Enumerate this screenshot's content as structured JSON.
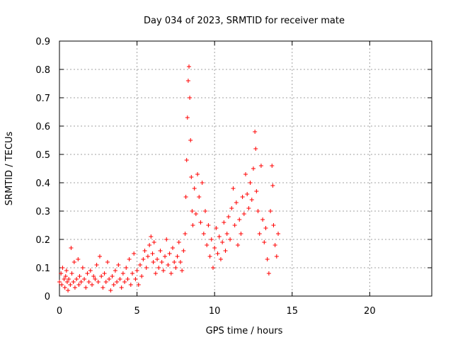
{
  "chart_data": {
    "type": "scatter",
    "title": "Day 034 of 2023, SRMTID for receiver mate",
    "xlabel": "GPS time / hours",
    "ylabel": "SRMTID / TECUs",
    "xlim": [
      0,
      24
    ],
    "ylim": [
      0,
      0.9
    ],
    "grid": true,
    "xticks": [
      0,
      5,
      10,
      15,
      20
    ],
    "yticks": [
      0,
      0.1,
      0.2,
      0.3,
      0.4,
      0.5,
      0.6,
      0.7,
      0.8,
      0.9
    ],
    "marker": "+",
    "series_color": "#ff0000",
    "series": [
      {
        "name": "SRMTID",
        "points": [
          [
            0.0,
            0.05
          ],
          [
            0.1,
            0.08
          ],
          [
            0.15,
            0.04
          ],
          [
            0.2,
            0.1
          ],
          [
            0.3,
            0.06
          ],
          [
            0.35,
            0.03
          ],
          [
            0.4,
            0.07
          ],
          [
            0.45,
            0.09
          ],
          [
            0.5,
            0.05
          ],
          [
            0.55,
            0.02
          ],
          [
            0.6,
            0.06
          ],
          [
            0.7,
            0.04
          ],
          [
            0.75,
            0.17
          ],
          [
            0.8,
            0.08
          ],
          [
            0.9,
            0.05
          ],
          [
            0.95,
            0.12
          ],
          [
            1.0,
            0.03
          ],
          [
            1.1,
            0.06
          ],
          [
            1.2,
            0.13
          ],
          [
            1.25,
            0.04
          ],
          [
            1.3,
            0.07
          ],
          [
            1.4,
            0.05
          ],
          [
            1.5,
            0.1
          ],
          [
            1.6,
            0.06
          ],
          [
            1.7,
            0.03
          ],
          [
            1.8,
            0.08
          ],
          [
            1.9,
            0.05
          ],
          [
            2.0,
            0.09
          ],
          [
            2.1,
            0.04
          ],
          [
            2.2,
            0.07
          ],
          [
            2.3,
            0.06
          ],
          [
            2.4,
            0.11
          ],
          [
            2.5,
            0.05
          ],
          [
            2.6,
            0.14
          ],
          [
            2.7,
            0.07
          ],
          [
            2.8,
            0.03
          ],
          [
            2.9,
            0.08
          ],
          [
            3.0,
            0.05
          ],
          [
            3.1,
            0.12
          ],
          [
            3.2,
            0.06
          ],
          [
            3.3,
            0.02
          ],
          [
            3.4,
            0.07
          ],
          [
            3.5,
            0.04
          ],
          [
            3.6,
            0.09
          ],
          [
            3.7,
            0.05
          ],
          [
            3.8,
            0.11
          ],
          [
            3.9,
            0.06
          ],
          [
            4.0,
            0.03
          ],
          [
            4.1,
            0.08
          ],
          [
            4.2,
            0.05
          ],
          [
            4.3,
            0.1
          ],
          [
            4.4,
            0.06
          ],
          [
            4.5,
            0.13
          ],
          [
            4.6,
            0.04
          ],
          [
            4.7,
            0.08
          ],
          [
            4.8,
            0.15
          ],
          [
            4.9,
            0.06
          ],
          [
            5.0,
            0.09
          ],
          [
            5.1,
            0.04
          ],
          [
            5.2,
            0.11
          ],
          [
            5.3,
            0.07
          ],
          [
            5.4,
            0.13
          ],
          [
            5.5,
            0.16
          ],
          [
            5.6,
            0.1
          ],
          [
            5.7,
            0.14
          ],
          [
            5.8,
            0.18
          ],
          [
            5.9,
            0.21
          ],
          [
            6.0,
            0.15
          ],
          [
            6.05,
            0.12
          ],
          [
            6.1,
            0.19
          ],
          [
            6.2,
            0.08
          ],
          [
            6.3,
            0.13
          ],
          [
            6.4,
            0.1
          ],
          [
            6.5,
            0.16
          ],
          [
            6.6,
            0.12
          ],
          [
            6.7,
            0.09
          ],
          [
            6.8,
            0.14
          ],
          [
            6.9,
            0.2
          ],
          [
            7.0,
            0.11
          ],
          [
            7.1,
            0.15
          ],
          [
            7.2,
            0.08
          ],
          [
            7.3,
            0.17
          ],
          [
            7.4,
            0.12
          ],
          [
            7.5,
            0.1
          ],
          [
            7.6,
            0.14
          ],
          [
            7.7,
            0.19
          ],
          [
            7.8,
            0.12
          ],
          [
            7.9,
            0.09
          ],
          [
            8.0,
            0.16
          ],
          [
            8.1,
            0.22
          ],
          [
            8.15,
            0.35
          ],
          [
            8.2,
            0.48
          ],
          [
            8.25,
            0.63
          ],
          [
            8.3,
            0.76
          ],
          [
            8.35,
            0.81
          ],
          [
            8.4,
            0.7
          ],
          [
            8.45,
            0.55
          ],
          [
            8.5,
            0.42
          ],
          [
            8.55,
            0.3
          ],
          [
            8.6,
            0.25
          ],
          [
            8.7,
            0.38
          ],
          [
            8.8,
            0.29
          ],
          [
            8.9,
            0.43
          ],
          [
            9.0,
            0.35
          ],
          [
            9.1,
            0.26
          ],
          [
            9.2,
            0.4
          ],
          [
            9.3,
            0.22
          ],
          [
            9.4,
            0.3
          ],
          [
            9.5,
            0.18
          ],
          [
            9.6,
            0.25
          ],
          [
            9.7,
            0.14
          ],
          [
            9.8,
            0.2
          ],
          [
            9.9,
            0.1
          ],
          [
            10.0,
            0.17
          ],
          [
            10.1,
            0.24
          ],
          [
            10.2,
            0.15
          ],
          [
            10.3,
            0.21
          ],
          [
            10.4,
            0.13
          ],
          [
            10.5,
            0.19
          ],
          [
            10.6,
            0.26
          ],
          [
            10.7,
            0.16
          ],
          [
            10.8,
            0.22
          ],
          [
            10.9,
            0.28
          ],
          [
            11.0,
            0.2
          ],
          [
            11.1,
            0.31
          ],
          [
            11.2,
            0.38
          ],
          [
            11.3,
            0.25
          ],
          [
            11.4,
            0.33
          ],
          [
            11.5,
            0.18
          ],
          [
            11.6,
            0.27
          ],
          [
            11.7,
            0.22
          ],
          [
            11.8,
            0.35
          ],
          [
            11.9,
            0.29
          ],
          [
            12.0,
            0.43
          ],
          [
            12.1,
            0.36
          ],
          [
            12.2,
            0.31
          ],
          [
            12.3,
            0.4
          ],
          [
            12.4,
            0.34
          ],
          [
            12.5,
            0.45
          ],
          [
            12.6,
            0.58
          ],
          [
            12.65,
            0.52
          ],
          [
            12.7,
            0.37
          ],
          [
            12.8,
            0.3
          ],
          [
            12.9,
            0.22
          ],
          [
            13.0,
            0.46
          ],
          [
            13.1,
            0.27
          ],
          [
            13.2,
            0.19
          ],
          [
            13.3,
            0.24
          ],
          [
            13.4,
            0.13
          ],
          [
            13.5,
            0.08
          ],
          [
            13.6,
            0.3
          ],
          [
            13.7,
            0.46
          ],
          [
            13.75,
            0.39
          ],
          [
            13.8,
            0.25
          ],
          [
            13.9,
            0.18
          ],
          [
            14.0,
            0.14
          ],
          [
            14.1,
            0.22
          ]
        ]
      }
    ]
  }
}
